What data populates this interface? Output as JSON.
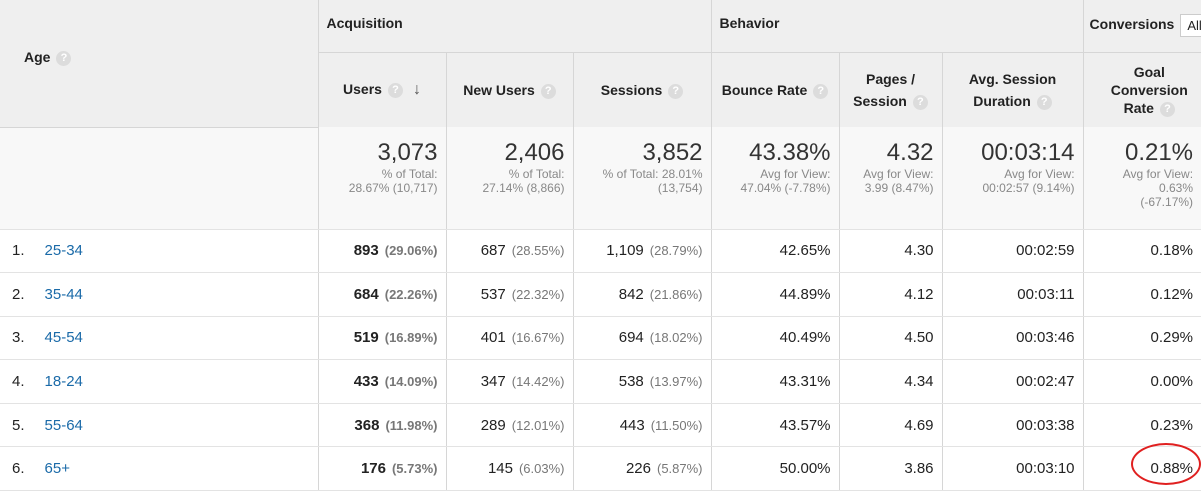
{
  "header": {
    "age_label": "Age",
    "acquisition": "Acquisition",
    "behavior": "Behavior",
    "conversions": "Conversions",
    "conversions_select": "All",
    "cols": {
      "users": "Users",
      "new_users": "New Users",
      "sessions": "Sessions",
      "bounce_rate": "Bounce Rate",
      "pages_line1": "Pages /",
      "pages_line2": "Session",
      "duration_line1": "Avg. Session",
      "duration_line2": "Duration",
      "goal_line1": "Goal",
      "goal_line2": "Conversion",
      "goal_line3": "Rate"
    }
  },
  "totals": {
    "users": {
      "big": "3,073",
      "sub1": "% of Total:",
      "sub2": "28.67% (10,717)"
    },
    "new_users": {
      "big": "2,406",
      "sub1": "% of Total:",
      "sub2": "27.14% (8,866)"
    },
    "sessions": {
      "big": "3,852",
      "sub1": "% of Total: 28.01%",
      "sub2": "(13,754)"
    },
    "bounce_rate": {
      "big": "43.38%",
      "sub1": "Avg for View:",
      "sub2": "47.04% (-7.78%)"
    },
    "pages": {
      "big": "4.32",
      "sub1": "Avg for View:",
      "sub2": "3.99 (8.47%)"
    },
    "duration": {
      "big": "00:03:14",
      "sub1": "Avg for View:",
      "sub2": "00:02:57 (9.14%)"
    },
    "goal": {
      "big": "0.21%",
      "sub1": "Avg for View:",
      "sub2": "0.63%",
      "sub3": "(-67.17%)"
    }
  },
  "rows": [
    {
      "idx": "1.",
      "age": "25-34",
      "users": "893",
      "users_pct": "(29.06%)",
      "new_users": "687",
      "new_users_pct": "(28.55%)",
      "sessions": "1,109",
      "sessions_pct": "(28.79%)",
      "bounce": "42.65%",
      "pages": "4.30",
      "duration": "00:02:59",
      "goal": "0.18%"
    },
    {
      "idx": "2.",
      "age": "35-44",
      "users": "684",
      "users_pct": "(22.26%)",
      "new_users": "537",
      "new_users_pct": "(22.32%)",
      "sessions": "842",
      "sessions_pct": "(21.86%)",
      "bounce": "44.89%",
      "pages": "4.12",
      "duration": "00:03:11",
      "goal": "0.12%"
    },
    {
      "idx": "3.",
      "age": "45-54",
      "users": "519",
      "users_pct": "(16.89%)",
      "new_users": "401",
      "new_users_pct": "(16.67%)",
      "sessions": "694",
      "sessions_pct": "(18.02%)",
      "bounce": "40.49%",
      "pages": "4.50",
      "duration": "00:03:46",
      "goal": "0.29%"
    },
    {
      "idx": "4.",
      "age": "18-24",
      "users": "433",
      "users_pct": "(14.09%)",
      "new_users": "347",
      "new_users_pct": "(14.42%)",
      "sessions": "538",
      "sessions_pct": "(13.97%)",
      "bounce": "43.31%",
      "pages": "4.34",
      "duration": "00:02:47",
      "goal": "0.00%"
    },
    {
      "idx": "5.",
      "age": "55-64",
      "users": "368",
      "users_pct": "(11.98%)",
      "new_users": "289",
      "new_users_pct": "(12.01%)",
      "sessions": "443",
      "sessions_pct": "(11.50%)",
      "bounce": "43.57%",
      "pages": "4.69",
      "duration": "00:03:38",
      "goal": "0.23%"
    },
    {
      "idx": "6.",
      "age": "65+",
      "users": "176",
      "users_pct": "(5.73%)",
      "new_users": "145",
      "new_users_pct": "(6.03%)",
      "sessions": "226",
      "sessions_pct": "(5.87%)",
      "bounce": "50.00%",
      "pages": "3.86",
      "duration": "00:03:10",
      "goal": "0.88%"
    }
  ],
  "icons": {
    "help": "help-icon",
    "sort": "sort-down-arrow-icon"
  },
  "colors": {
    "link": "#1a6aa8",
    "highlight": "#e02020"
  }
}
